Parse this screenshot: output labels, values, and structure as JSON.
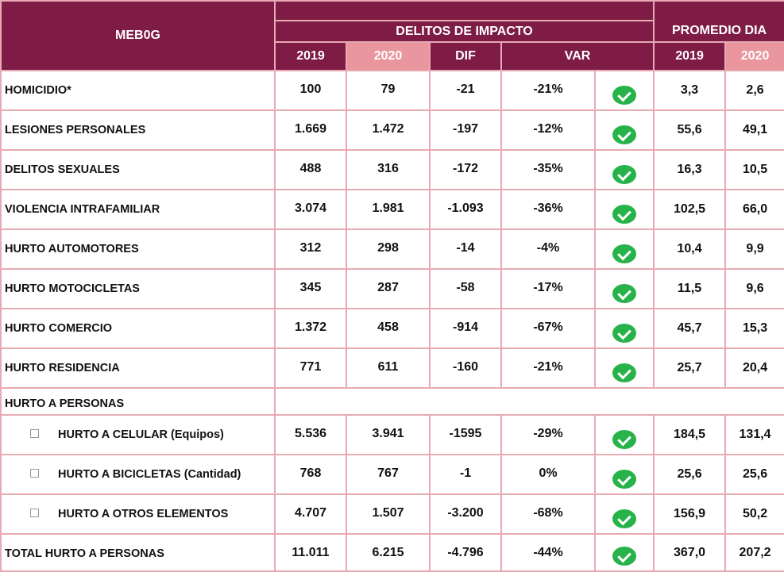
{
  "header": {
    "title": "MEB0G",
    "group": "DELITOS DE IMPACTO",
    "promedio": "PROMEDIO DIA",
    "cols": [
      "2019",
      "2020",
      "DIF",
      "VAR"
    ],
    "pd_cols": [
      "2019",
      "2020"
    ]
  },
  "colors": {
    "header": "#7f1c45",
    "pink": "#e9969e",
    "check": "#27b34a"
  },
  "rows": [
    {
      "label": "HOMICIDIO*",
      "y2019": "100",
      "y2020": "79",
      "dif": "-21",
      "var": "-21%",
      "pd2019": "3,3",
      "pd2020": "2,6"
    },
    {
      "label": "LESIONES PERSONALES",
      "y2019": "1.669",
      "y2020": "1.472",
      "dif": "-197",
      "var": "-12%",
      "pd2019": "55,6",
      "pd2020": "49,1"
    },
    {
      "label": "DELITOS SEXUALES",
      "y2019": "488",
      "y2020": "316",
      "dif": "-172",
      "var": "-35%",
      "pd2019": "16,3",
      "pd2020": "10,5"
    },
    {
      "label": "VIOLENCIA INTRAFAMILIAR",
      "y2019": "3.074",
      "y2020": "1.981",
      "dif": "-1.093",
      "var": "-36%",
      "pd2019": "102,5",
      "pd2020": "66,0"
    },
    {
      "label": "HURTO AUTOMOTORES",
      "y2019": "312",
      "y2020": "298",
      "dif": "-14",
      "var": "-4%",
      "pd2019": "10,4",
      "pd2020": "9,9"
    },
    {
      "label": "HURTO MOTOCICLETAS",
      "y2019": "345",
      "y2020": "287",
      "dif": "-58",
      "var": "-17%",
      "pd2019": "11,5",
      "pd2020": "9,6"
    },
    {
      "label": "HURTO COMERCIO",
      "y2019": "1.372",
      "y2020": "458",
      "dif": "-914",
      "var": "-67%",
      "pd2019": "45,7",
      "pd2020": "15,3"
    },
    {
      "label": "HURTO RESIDENCIA",
      "y2019": "771",
      "y2020": "611",
      "dif": "-160",
      "var": "-21%",
      "pd2019": "25,7",
      "pd2020": "20,4"
    }
  ],
  "section": "HURTO A PERSONAS",
  "subrows": [
    {
      "label": "HURTO A CELULAR (Equipos)",
      "y2019": "5.536",
      "y2020": "3.941",
      "dif": "-1595",
      "var": "-29%",
      "pd2019": "184,5",
      "pd2020": "131,4"
    },
    {
      "label": "HURTO A BICICLETAS (Cantidad)",
      "y2019": "768",
      "y2020": "767",
      "dif": "-1",
      "var": "0%",
      "pd2019": "25,6",
      "pd2020": "25,6"
    },
    {
      "label": "HURTO A OTROS ELEMENTOS",
      "y2019": "4.707",
      "y2020": "1.507",
      "dif": "-3.200",
      "var": "-68%",
      "pd2019": "156,9",
      "pd2020": "50,2"
    }
  ],
  "total": {
    "label": "TOTAL HURTO A PERSONAS",
    "y2019": "11.011",
    "y2020": "6.215",
    "dif": "-4.796",
    "var": "-44%",
    "pd2019": "367,0",
    "pd2020": "207,2"
  }
}
